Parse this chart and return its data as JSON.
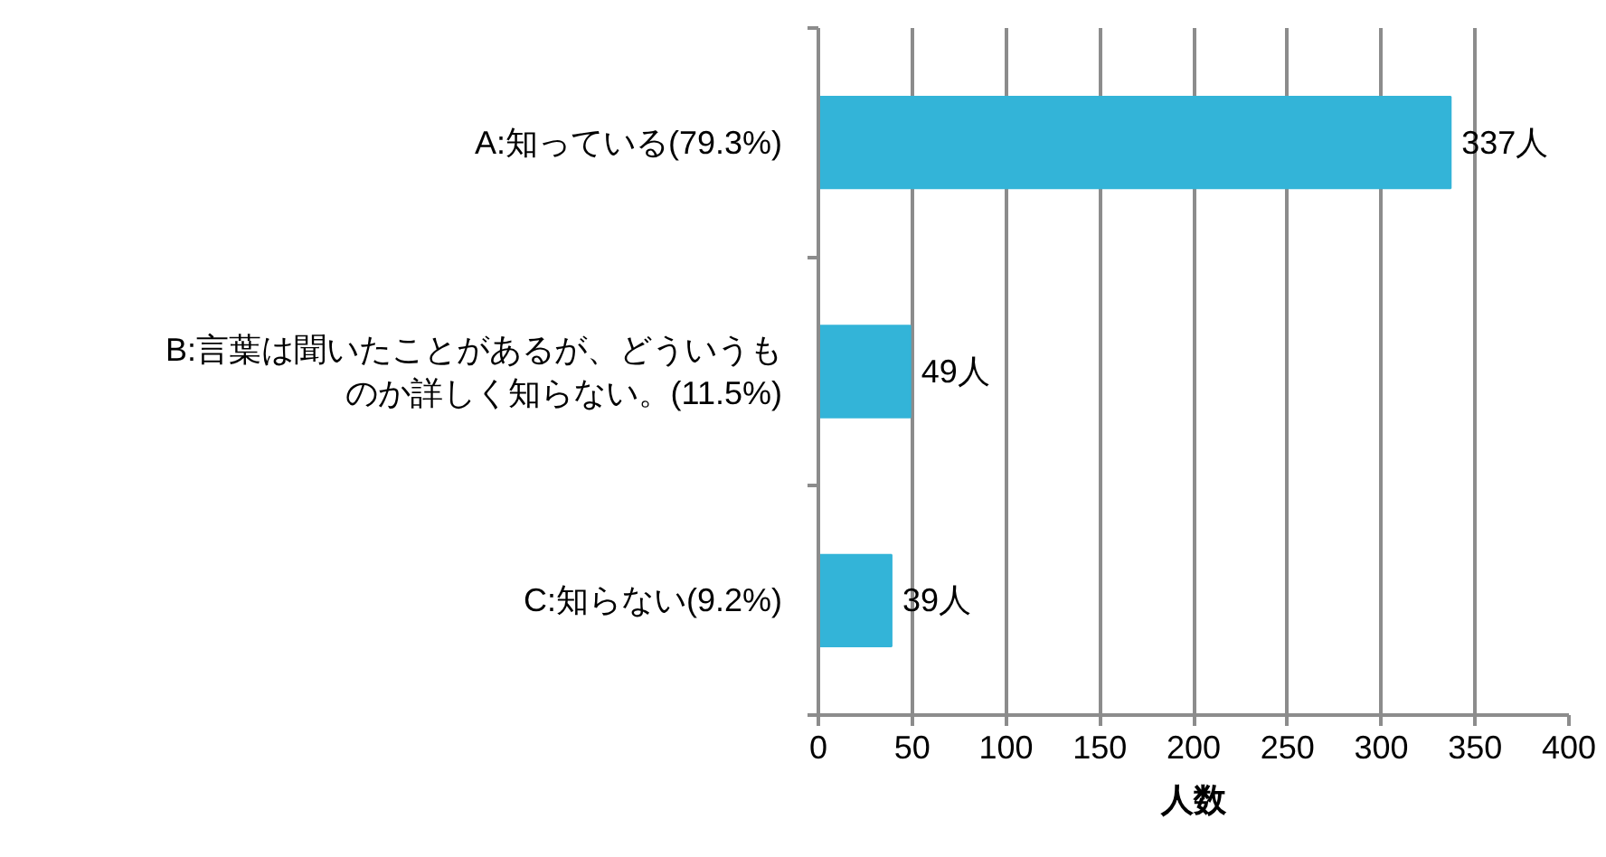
{
  "chart_data": {
    "type": "bar",
    "orientation": "horizontal",
    "categories": [
      "A:知っている(79.3%)",
      "B:言葉は聞いたことがあるが、どういうものか詳しく知らない。(11.5%)",
      "C:知らない(9.2%)"
    ],
    "values": [
      337,
      49,
      39
    ],
    "color": "#33b4d8",
    "value_labels": [
      "337人",
      "49人",
      "39人"
    ],
    "xlim": [
      0,
      400
    ],
    "xticks": [
      0,
      50,
      100,
      150,
      200,
      250,
      300,
      350,
      400
    ],
    "xlabel": "人数",
    "grid": "x"
  }
}
